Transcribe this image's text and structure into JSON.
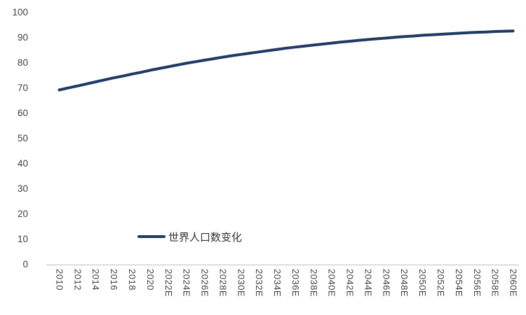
{
  "chart_data": {
    "type": "line",
    "title": "",
    "grid": false,
    "legend_position": "inside-bottom-left",
    "ylim": [
      0,
      100
    ],
    "yticks": [
      0,
      10,
      20,
      30,
      40,
      50,
      60,
      70,
      80,
      90,
      100
    ],
    "x_tick_labels": [
      "2010",
      "2012",
      "2014",
      "2016",
      "2018",
      "2020",
      "2022E",
      "2024E",
      "2026E",
      "2028E",
      "2030E",
      "2032E",
      "2034E",
      "2036E",
      "2038E",
      "2040E",
      "2042E",
      "2044E",
      "2046E",
      "2048E",
      "2050E",
      "2052E",
      "2054E",
      "2056E",
      "2058E",
      "2060E"
    ],
    "years": [
      2010,
      2011,
      2012,
      2013,
      2014,
      2015,
      2016,
      2017,
      2018,
      2019,
      2020,
      2021,
      2022,
      2023,
      2024,
      2025,
      2026,
      2027,
      2028,
      2029,
      2030,
      2031,
      2032,
      2033,
      2034,
      2035,
      2036,
      2037,
      2038,
      2039,
      2040,
      2041,
      2042,
      2043,
      2044,
      2045,
      2046,
      2047,
      2048,
      2049,
      2050,
      2051,
      2052,
      2053,
      2054,
      2055,
      2056,
      2057,
      2058,
      2059,
      2060
    ],
    "series": [
      {
        "name": "世界人口数变化",
        "color": "#1f3864",
        "values": [
          69.3,
          70.1,
          70.9,
          71.7,
          72.5,
          73.3,
          74.1,
          74.8,
          75.6,
          76.3,
          77.1,
          77.8,
          78.5,
          79.2,
          79.9,
          80.5,
          81.1,
          81.7,
          82.3,
          82.9,
          83.4,
          83.9,
          84.4,
          84.9,
          85.4,
          85.9,
          86.3,
          86.7,
          87.1,
          87.5,
          87.9,
          88.3,
          88.6,
          89.0,
          89.3,
          89.6,
          89.9,
          90.2,
          90.5,
          90.7,
          91.0,
          91.2,
          91.4,
          91.6,
          91.8,
          92.0,
          92.2,
          92.3,
          92.5,
          92.6,
          92.7
        ]
      }
    ]
  },
  "colors": {
    "line": "#1f3864",
    "axis": "#bfbfbf",
    "tick_text": "#404040"
  }
}
